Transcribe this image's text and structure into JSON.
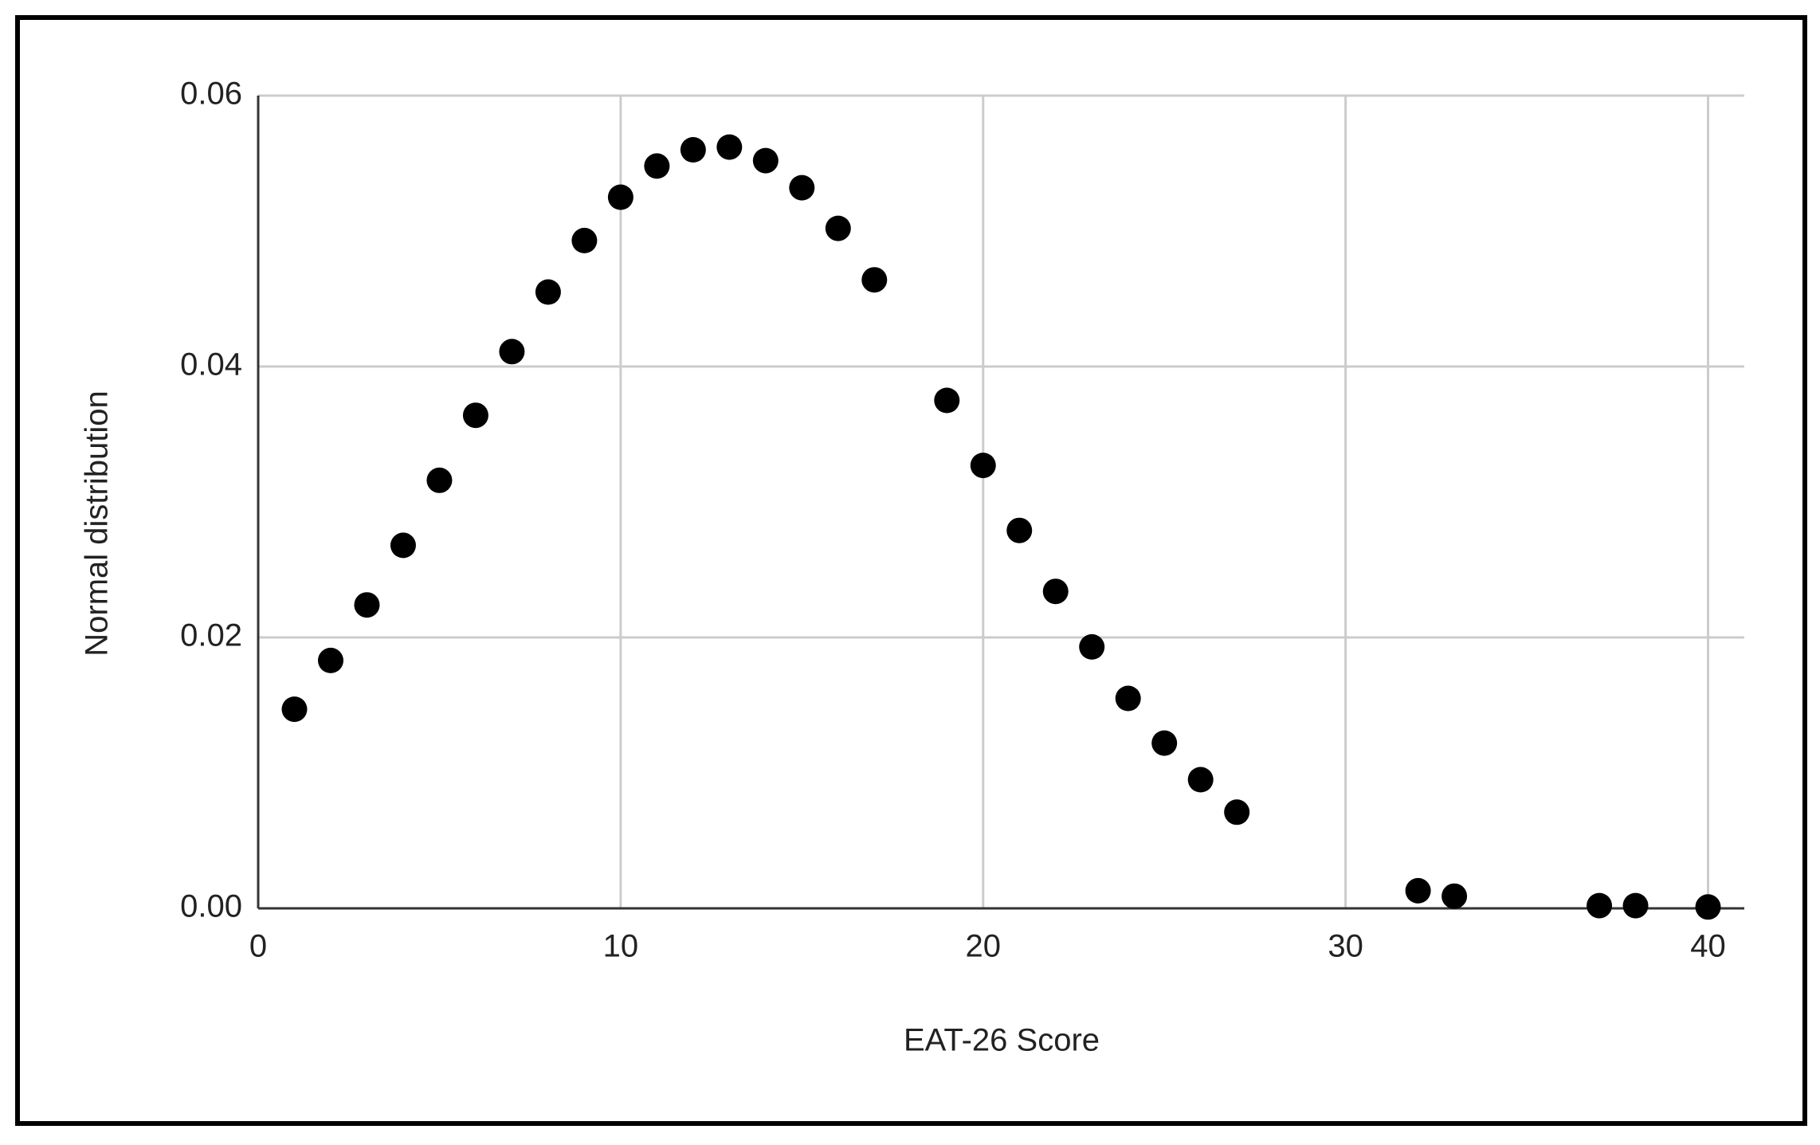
{
  "chart_data": {
    "type": "scatter",
    "x_label": "EAT-26 Score",
    "y_label": "Normal distribution",
    "x": [
      1,
      2,
      3,
      4,
      5,
      6,
      7,
      8,
      9,
      10,
      11,
      12,
      13,
      14,
      15,
      16,
      17,
      19,
      20,
      21,
      22,
      23,
      24,
      25,
      26,
      27,
      32,
      33,
      37,
      38,
      40
    ],
    "values": [
      0.0147,
      0.0183,
      0.0224,
      0.0268,
      0.0316,
      0.0364,
      0.0411,
      0.0455,
      0.0493,
      0.0525,
      0.0548,
      0.056,
      0.0562,
      0.0552,
      0.0532,
      0.0502,
      0.0464,
      0.0375,
      0.0327,
      0.0279,
      0.0234,
      0.0193,
      0.0155,
      0.0122,
      0.0095,
      0.0071,
      0.0013,
      0.0009,
      0.0002,
      0.0002,
      0.0001
    ],
    "color": "#000000",
    "xlim": [
      0,
      41
    ],
    "xticks": [
      0,
      10,
      20,
      30,
      40
    ],
    "ylim": [
      0,
      0.06
    ],
    "yticks": [
      {
        "value": 0,
        "label": "0.00"
      },
      {
        "value": 0.02,
        "label": "0.02"
      },
      {
        "value": 0.04,
        "label": "0.04"
      },
      {
        "value": 0.06,
        "label": "0.06"
      }
    ],
    "grid": true
  }
}
